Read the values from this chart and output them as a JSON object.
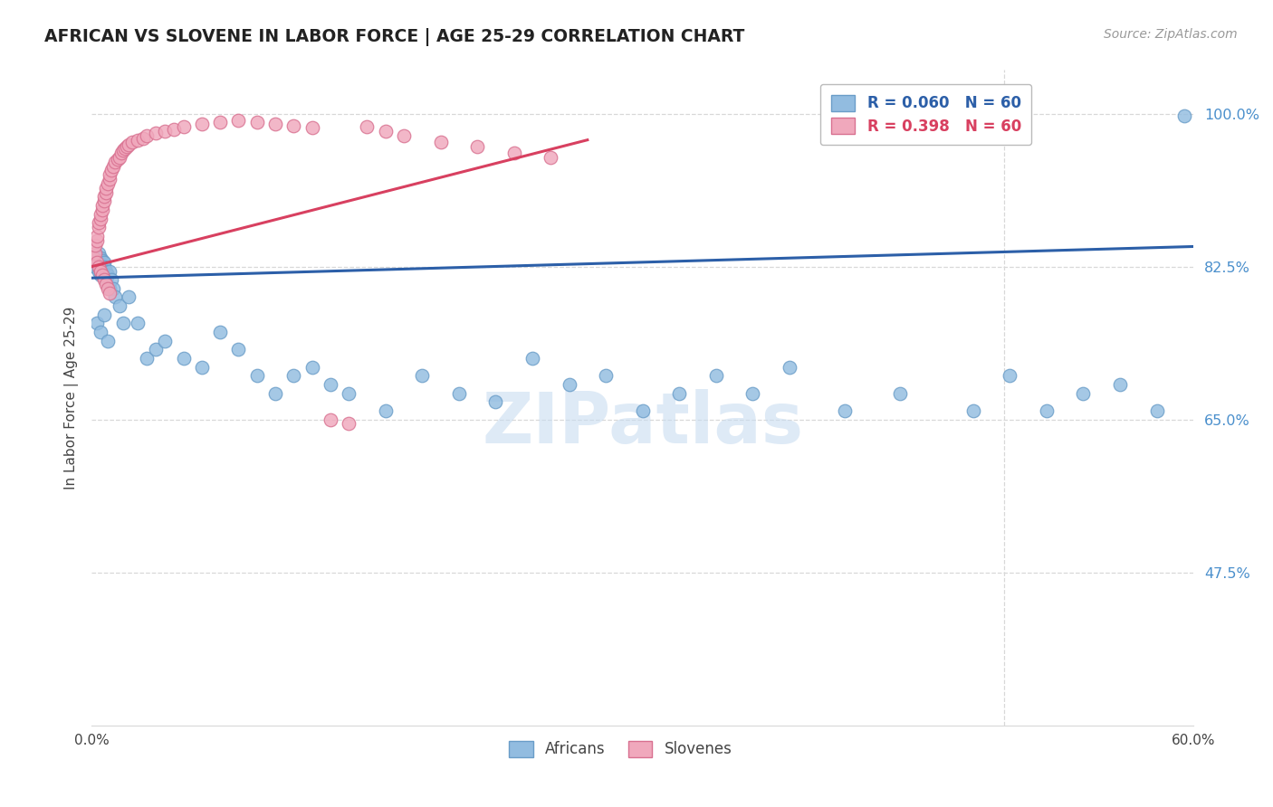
{
  "title": "AFRICAN VS SLOVENE IN LABOR FORCE | AGE 25-29 CORRELATION CHART",
  "source": "Source: ZipAtlas.com",
  "ylabel": "In Labor Force | Age 25-29",
  "ytick_labels": [
    "100.0%",
    "82.5%",
    "65.0%",
    "47.5%"
  ],
  "ytick_values": [
    1.0,
    0.825,
    0.65,
    0.475
  ],
  "xlim": [
    0.0,
    0.6
  ],
  "ylim": [
    0.3,
    1.05
  ],
  "watermark": "ZIPatlas",
  "african_color": "#92bce0",
  "african_edge": "#6a9dc8",
  "slovene_color": "#f0a8bc",
  "slovene_edge": "#d87090",
  "trendline_african_color": "#2c5fa8",
  "trendline_slovene_color": "#d84060",
  "african_trend_x": [
    0.0,
    0.6
  ],
  "african_trend_y": [
    0.812,
    0.848
  ],
  "slovene_trend_x": [
    0.0,
    0.27
  ],
  "slovene_trend_y": [
    0.825,
    0.97
  ],
  "grid_color": "#d8d8d8",
  "vertical_line_x": 0.497,
  "african_x": [
    0.002,
    0.003,
    0.004,
    0.004,
    0.005,
    0.005,
    0.006,
    0.006,
    0.007,
    0.007,
    0.008,
    0.008,
    0.009,
    0.01,
    0.01,
    0.011,
    0.012,
    0.013,
    0.015,
    0.017,
    0.02,
    0.025,
    0.03,
    0.035,
    0.04,
    0.05,
    0.06,
    0.07,
    0.08,
    0.09,
    0.1,
    0.11,
    0.12,
    0.13,
    0.14,
    0.16,
    0.18,
    0.2,
    0.22,
    0.24,
    0.26,
    0.28,
    0.3,
    0.32,
    0.34,
    0.36,
    0.38,
    0.41,
    0.44,
    0.48,
    0.5,
    0.52,
    0.54,
    0.56,
    0.58,
    0.595,
    0.003,
    0.005,
    0.007,
    0.009
  ],
  "african_y": [
    0.825,
    0.83,
    0.84,
    0.82,
    0.835,
    0.815,
    0.828,
    0.832,
    0.83,
    0.825,
    0.82,
    0.81,
    0.815,
    0.8,
    0.82,
    0.81,
    0.8,
    0.79,
    0.78,
    0.76,
    0.79,
    0.76,
    0.72,
    0.73,
    0.74,
    0.72,
    0.71,
    0.75,
    0.73,
    0.7,
    0.68,
    0.7,
    0.71,
    0.69,
    0.68,
    0.66,
    0.7,
    0.68,
    0.67,
    0.72,
    0.69,
    0.7,
    0.66,
    0.68,
    0.7,
    0.68,
    0.71,
    0.66,
    0.68,
    0.66,
    0.7,
    0.66,
    0.68,
    0.69,
    0.66,
    0.998,
    0.76,
    0.75,
    0.77,
    0.74
  ],
  "slovene_x": [
    0.001,
    0.002,
    0.002,
    0.003,
    0.003,
    0.004,
    0.004,
    0.005,
    0.005,
    0.006,
    0.006,
    0.007,
    0.007,
    0.008,
    0.008,
    0.009,
    0.01,
    0.01,
    0.011,
    0.012,
    0.013,
    0.014,
    0.015,
    0.016,
    0.017,
    0.018,
    0.019,
    0.02,
    0.022,
    0.025,
    0.028,
    0.03,
    0.035,
    0.04,
    0.045,
    0.05,
    0.06,
    0.07,
    0.08,
    0.09,
    0.1,
    0.11,
    0.12,
    0.13,
    0.14,
    0.15,
    0.16,
    0.17,
    0.19,
    0.21,
    0.23,
    0.25,
    0.003,
    0.004,
    0.005,
    0.006,
    0.007,
    0.008,
    0.009,
    0.01
  ],
  "slovene_y": [
    0.835,
    0.84,
    0.85,
    0.855,
    0.86,
    0.87,
    0.875,
    0.88,
    0.885,
    0.89,
    0.895,
    0.9,
    0.905,
    0.91,
    0.915,
    0.92,
    0.925,
    0.93,
    0.935,
    0.94,
    0.945,
    0.948,
    0.95,
    0.955,
    0.958,
    0.96,
    0.962,
    0.965,
    0.968,
    0.97,
    0.972,
    0.975,
    0.978,
    0.98,
    0.982,
    0.985,
    0.988,
    0.99,
    0.992,
    0.99,
    0.988,
    0.986,
    0.984,
    0.65,
    0.645,
    0.985,
    0.98,
    0.975,
    0.968,
    0.962,
    0.955,
    0.95,
    0.83,
    0.825,
    0.82,
    0.815,
    0.81,
    0.805,
    0.8,
    0.795
  ]
}
